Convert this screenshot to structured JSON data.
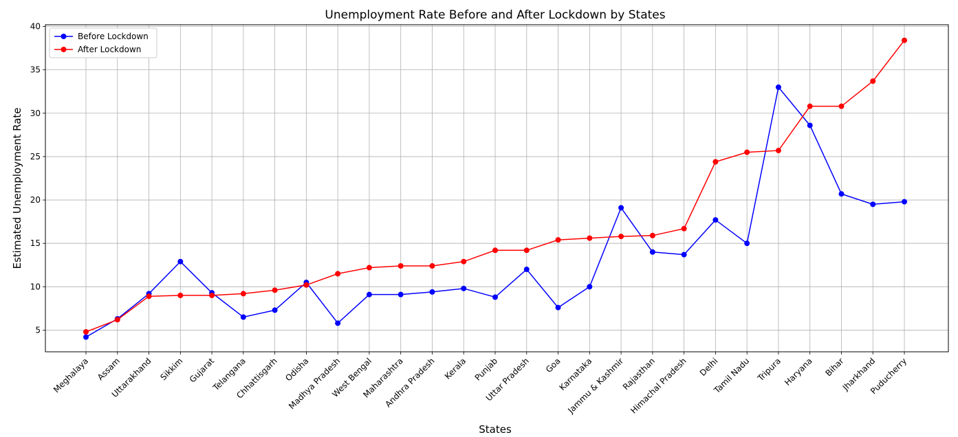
{
  "chart_data": {
    "type": "line",
    "title": "Unemployment Rate Before and After Lockdown by States",
    "xlabel": "States",
    "ylabel": "Estimated Unemployment Rate",
    "ylim": [
      2.5,
      40.2
    ],
    "yticks": [
      5,
      10,
      15,
      20,
      25,
      30,
      35,
      40
    ],
    "grid": true,
    "legend_position": "upper-left",
    "categories": [
      "Meghalaya",
      "Assam",
      "Uttarakhand",
      "Sikkim",
      "Gujarat",
      "Telangana",
      "Chhattisgarh",
      "Odisha",
      "Madhya Pradesh",
      "West Bengal",
      "Maharashtra",
      "Andhra Pradesh",
      "Kerala",
      "Punjab",
      "Uttar Pradesh",
      "Goa",
      "Karnataka",
      "Jammu & Kashmir",
      "Rajasthan",
      "Himachal Pradesh",
      "Delhi",
      "Tamil Nadu",
      "Tripura",
      "Haryana",
      "Bihar",
      "Jharkhand",
      "Puducherry"
    ],
    "series": [
      {
        "name": "Before Lockdown",
        "color": "#0000ff",
        "values": [
          4.2,
          6.3,
          9.2,
          12.9,
          9.3,
          6.5,
          7.3,
          10.5,
          5.8,
          9.1,
          9.1,
          9.4,
          9.8,
          8.8,
          12.0,
          7.6,
          10.0,
          19.1,
          14.0,
          13.7,
          17.7,
          15.0,
          33.0,
          28.6,
          20.7,
          19.5,
          19.8
        ]
      },
      {
        "name": "After Lockdown",
        "color": "#ff0000",
        "values": [
          4.8,
          6.2,
          8.9,
          9.0,
          9.0,
          9.2,
          9.6,
          10.2,
          11.5,
          12.2,
          12.4,
          12.4,
          12.9,
          14.2,
          14.2,
          15.4,
          15.6,
          15.8,
          15.9,
          16.7,
          24.4,
          25.5,
          25.7,
          30.8,
          30.8,
          33.7,
          38.4
        ]
      }
    ]
  }
}
